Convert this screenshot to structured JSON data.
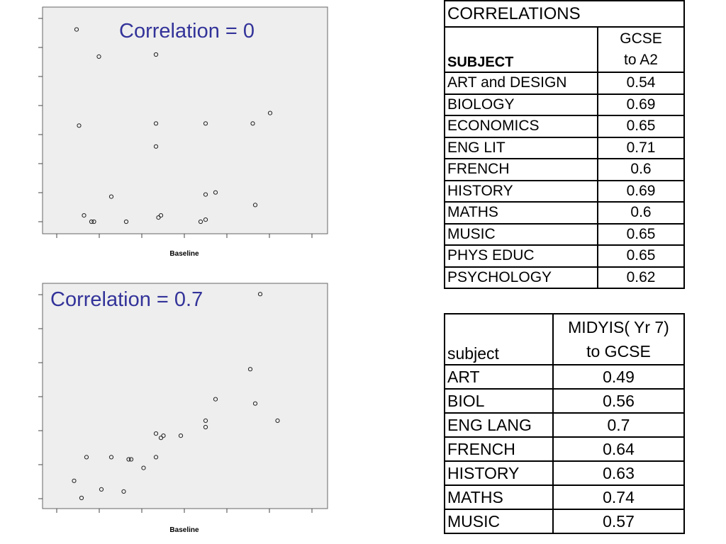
{
  "chart_data": [
    {
      "type": "scatter",
      "title": "Correlation = 0",
      "xlabel": "Baseline",
      "ylabel": "",
      "xlim": [
        0,
        10
      ],
      "ylim": [
        0,
        10
      ],
      "x": [
        0.8,
        1.7,
        0.9,
        1.1,
        1.4,
        1.5,
        2.8,
        4.0,
        4.0,
        4.0,
        4.1,
        4.2,
        2.2,
        5.8,
        6.0,
        6.0,
        6.0,
        6.4,
        7.9,
        8.0,
        8.6
      ],
      "y": [
        9.2,
        7.9,
        4.6,
        0.3,
        0.0,
        0.0,
        0.0,
        8.0,
        4.7,
        3.6,
        0.2,
        0.3,
        1.2,
        0.0,
        4.7,
        1.3,
        0.1,
        1.4,
        4.7,
        0.8,
        5.2
      ]
    },
    {
      "type": "scatter",
      "title": "Correlation = 0.7",
      "xlabel": "Baseline",
      "ylabel": "",
      "xlim": [
        0,
        10
      ],
      "ylim": [
        0,
        10
      ],
      "x": [
        0.7,
        1.0,
        1.2,
        1.8,
        2.2,
        2.7,
        2.9,
        3.0,
        3.5,
        4.0,
        4.0,
        4.2,
        4.3,
        5.0,
        6.0,
        6.0,
        6.4,
        8.0,
        8.2,
        8.9,
        7.8
      ],
      "y": [
        0.8,
        0.0,
        1.9,
        0.4,
        1.9,
        0.3,
        1.8,
        1.8,
        1.4,
        3.0,
        1.9,
        2.8,
        2.9,
        2.9,
        3.3,
        3.6,
        4.6,
        4.4,
        9.5,
        3.6,
        6.0
      ]
    }
  ],
  "table1": {
    "title": "CORRELATIONS",
    "subject_header": "SUBJECT",
    "col_header_line1": "GCSE",
    "col_header_line2": "to A2",
    "rows": [
      {
        "subject": "ART and DESIGN",
        "value": "0.54"
      },
      {
        "subject": "BIOLOGY",
        "value": "0.69"
      },
      {
        "subject": "ECONOMICS",
        "value": "0.65"
      },
      {
        "subject": "ENG LIT",
        "value": "0.71"
      },
      {
        "subject": "FRENCH",
        "value": "0.6"
      },
      {
        "subject": "HISTORY",
        "value": "0.69"
      },
      {
        "subject": "MATHS",
        "value": "0.6"
      },
      {
        "subject": "MUSIC",
        "value": "0.65"
      },
      {
        "subject": "PHYS EDUC",
        "value": "0.65"
      },
      {
        "subject": "PSYCHOLOGY",
        "value": "0.62"
      }
    ]
  },
  "table2": {
    "subject_header": "subject",
    "col_header_line1": "MIDYIS( Yr 7)",
    "col_header_line2": "to GCSE",
    "rows": [
      {
        "subject": "ART",
        "value": "0.49"
      },
      {
        "subject": "BIOL",
        "value": "0.56"
      },
      {
        "subject": "ENG LANG",
        "value": "0.7"
      },
      {
        "subject": "FRENCH",
        "value": "0.64"
      },
      {
        "subject": "HISTORY",
        "value": "0.63"
      },
      {
        "subject": "MATHS",
        "value": "0.74"
      },
      {
        "subject": "MUSIC",
        "value": "0.57"
      }
    ]
  },
  "colors": {
    "plot_background": "#eeeeee",
    "title_color": "#33339a",
    "marker_stroke": "#222222"
  }
}
